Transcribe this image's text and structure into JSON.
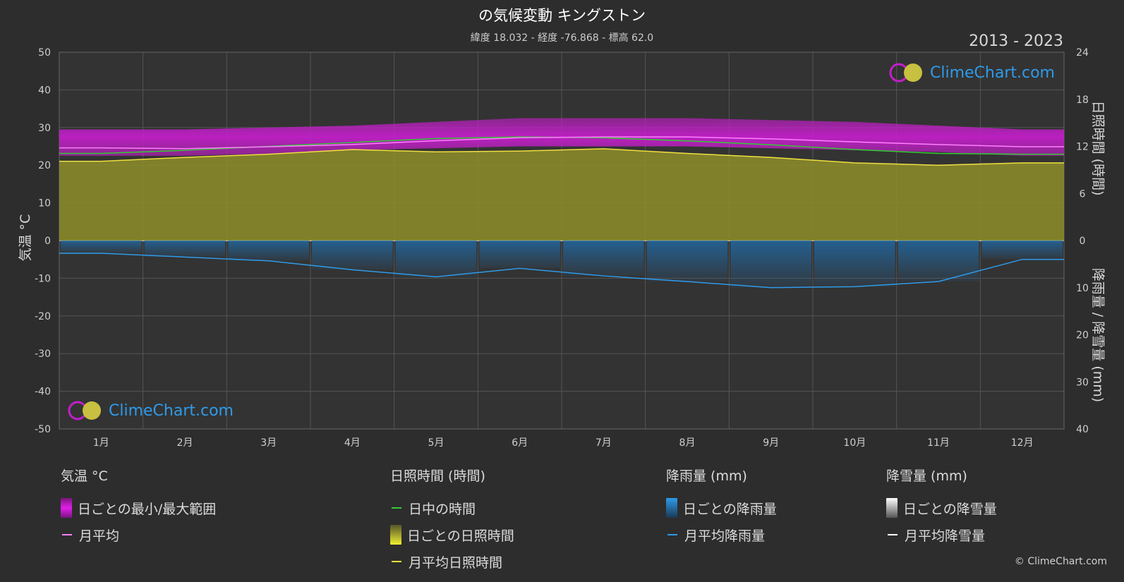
{
  "header": {
    "title": "の気候変動 キングストン",
    "subtitle": "緯度 18.032 - 経度 -76.868 - 標高 62.0",
    "years": "2013 - 2023"
  },
  "axes": {
    "left_label": "気温 °C",
    "right_top_label": "日照時間 (時間)",
    "right_bottom_label": "降雨量 / 降雪量 (mm)"
  },
  "chart_data": {
    "type": "area",
    "months": [
      "1月",
      "2月",
      "3月",
      "4月",
      "5月",
      "6月",
      "7月",
      "8月",
      "9月",
      "10月",
      "11月",
      "12月"
    ],
    "left_axis": {
      "label": "気温 °C",
      "ylim": [
        -50,
        50
      ],
      "ticks": [
        50,
        40,
        30,
        20,
        10,
        0,
        -10,
        -20,
        -30,
        -40,
        -50
      ]
    },
    "right_axis_sun": {
      "label": "日照時間 (時間)",
      "ylim": [
        0,
        24
      ],
      "ticks": [
        24,
        18,
        12,
        6,
        0
      ]
    },
    "right_axis_rain": {
      "label": "降雨量 / 降雪量 (mm)",
      "ylim": [
        0,
        40
      ],
      "ticks": [
        0,
        10,
        20,
        30,
        40
      ]
    },
    "grid": true,
    "series": [
      {
        "name": "日ごとの最小/最大範囲",
        "kind": "band",
        "axis": "temp",
        "min": [
          22.5,
          22.5,
          23.0,
          24.0,
          24.5,
          25.0,
          25.0,
          25.0,
          24.5,
          24.0,
          23.5,
          22.5
        ],
        "max": [
          29.5,
          29.5,
          30.0,
          30.5,
          31.5,
          32.5,
          32.5,
          32.5,
          32.0,
          31.5,
          30.5,
          29.5
        ]
      },
      {
        "name": "月平均",
        "kind": "line",
        "axis": "temp",
        "values": [
          24.6,
          24.4,
          24.9,
          25.5,
          26.5,
          27.3,
          27.5,
          27.5,
          27.0,
          26.2,
          25.5,
          24.9
        ]
      },
      {
        "name": "日中の時間",
        "kind": "line",
        "axis": "sun",
        "values": [
          11.1,
          11.5,
          12.0,
          12.5,
          13.0,
          13.2,
          13.1,
          12.7,
          12.2,
          11.6,
          11.1,
          11.0
        ]
      },
      {
        "name": "日ごとの日照時間",
        "kind": "area",
        "axis": "sun",
        "values": [
          10.1,
          10.6,
          11.0,
          11.6,
          11.3,
          11.4,
          11.7,
          11.1,
          10.6,
          9.9,
          9.6,
          9.9
        ]
      },
      {
        "name": "月平均日照時間",
        "kind": "line",
        "axis": "sun",
        "values": [
          10.1,
          10.6,
          11.0,
          11.6,
          11.3,
          11.4,
          11.7,
          11.1,
          10.6,
          9.9,
          9.6,
          9.9
        ]
      },
      {
        "name": "日ごとの降雨量",
        "kind": "bars",
        "axis": "rain",
        "values": [
          2.7,
          3.5,
          4.3,
          6.2,
          7.7,
          5.9,
          7.5,
          8.7,
          10.0,
          9.8,
          8.7,
          4.0
        ]
      },
      {
        "name": "月平均降雨量",
        "kind": "line",
        "axis": "rain",
        "values": [
          2.7,
          3.5,
          4.3,
          6.2,
          7.7,
          5.9,
          7.5,
          8.7,
          10.0,
          9.8,
          8.7,
          4.0
        ]
      },
      {
        "name": "日ごとの降雪量",
        "kind": "bars",
        "axis": "rain",
        "values": [
          0,
          0,
          0,
          0,
          0,
          0,
          0,
          0,
          0,
          0,
          0,
          0
        ]
      },
      {
        "name": "月平均降雪量",
        "kind": "line",
        "axis": "rain",
        "values": [
          0,
          0,
          0,
          0,
          0,
          0,
          0,
          0,
          0,
          0,
          0,
          0
        ]
      }
    ]
  },
  "legend": {
    "temp": {
      "heading": "気温 °C",
      "items": [
        "日ごとの最小/最大範囲",
        "月平均"
      ]
    },
    "sun": {
      "heading": "日照時間 (時間)",
      "items": [
        "日中の時間",
        "日ごとの日照時間",
        "月平均日照時間"
      ]
    },
    "rain": {
      "heading": "降雨量 (mm)",
      "items": [
        "日ごとの降雨量",
        "月平均降雨量"
      ]
    },
    "snow": {
      "heading": "降雪量 (mm)",
      "items": [
        "日ごとの降雪量",
        "月平均降雪量"
      ]
    }
  },
  "colors": {
    "range_band": "#c21fc8",
    "temp_mean": "#ff7fff",
    "daylight": "#33cc33",
    "sunshine_area": "#8e8e2a",
    "sunshine_mean": "#f0e040",
    "rain": "#1f6fb0",
    "rain_mean": "#2e9bea",
    "snow_mean": "#ffffff"
  },
  "branding": {
    "logo_text": "ClimeChart.com",
    "copyright": "© ClimeChart.com"
  }
}
